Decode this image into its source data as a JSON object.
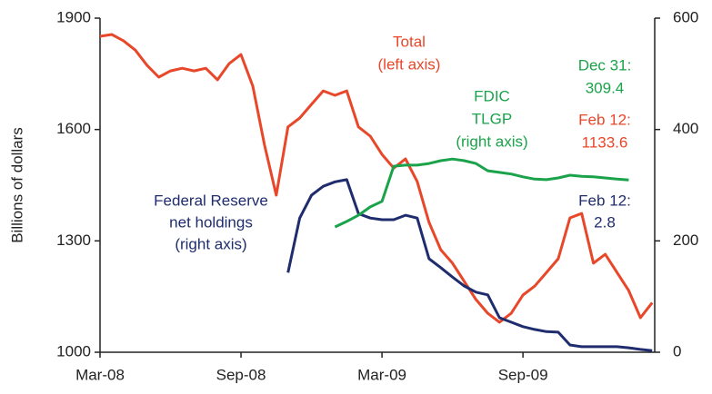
{
  "chart_data": {
    "type": "line",
    "y_label": "Billions of dollars",
    "categories": [
      "Mar-08",
      null,
      null,
      null,
      null,
      null,
      null,
      null,
      null,
      null,
      null,
      null,
      "Sep-08",
      null,
      null,
      null,
      null,
      null,
      null,
      null,
      null,
      null,
      null,
      null,
      "Mar-09",
      null,
      null,
      null,
      null,
      null,
      null,
      null,
      null,
      null,
      null,
      null,
      "Sep-09",
      null,
      null,
      null,
      null,
      null,
      null,
      null,
      null,
      null,
      null,
      null
    ],
    "ylim": [
      1000,
      1900
    ],
    "yticks": [
      1000,
      1300,
      1600,
      1900
    ],
    "y2lim": [
      0,
      600
    ],
    "y2ticks": [
      0,
      200,
      400,
      600
    ],
    "series": [
      {
        "name": "Total",
        "color": "#e8472a",
        "axis": "y",
        "values": [
          1851,
          1856,
          1839,
          1814,
          1773,
          1741,
          1758,
          1765,
          1758,
          1765,
          1734,
          1778,
          1802,
          1717,
          1558,
          1423,
          1607,
          1631,
          1668,
          1704,
          1692,
          1704,
          1607,
          1582,
          1533,
          1496,
          1521,
          1460,
          1350,
          1276,
          1240,
          1191,
          1142,
          1105,
          1081,
          1105,
          1154,
          1178,
          1215,
          1252,
          1362,
          1374,
          1240,
          1264,
          1215,
          1166,
          1093,
          1133.6
        ]
      },
      {
        "name": "Federal Reserve",
        "color": "#1f2d6e",
        "axis": "y2",
        "values": [
          null,
          null,
          null,
          null,
          null,
          null,
          null,
          null,
          null,
          null,
          null,
          null,
          null,
          null,
          null,
          null,
          143,
          241,
          282,
          298,
          306,
          310,
          249,
          241,
          238,
          238,
          246,
          241,
          168,
          152,
          135,
          119,
          108,
          103,
          62,
          54,
          46,
          41,
          37,
          36,
          13,
          10,
          10,
          10,
          10,
          8,
          5,
          2.8
        ]
      },
      {
        "name": "FDIC TLGP",
        "color": "#1aa34a",
        "axis": "y2",
        "values": [
          null,
          null,
          null,
          null,
          null,
          null,
          null,
          null,
          null,
          null,
          null,
          null,
          null,
          null,
          null,
          null,
          null,
          null,
          null,
          null,
          225,
          235,
          246,
          261,
          271,
          334,
          336,
          336,
          339,
          344,
          347,
          344,
          339,
          326,
          323,
          320,
          315,
          311,
          310,
          313,
          318,
          316,
          315,
          313,
          311,
          309.4,
          null,
          null
        ]
      }
    ],
    "annotations": [
      {
        "text": "Total",
        "color": "#e8472a"
      },
      {
        "text": "(left axis)",
        "color": "#e8472a"
      },
      {
        "text": "FDIC",
        "color": "#1aa34a"
      },
      {
        "text": "TLGP",
        "color": "#1aa34a"
      },
      {
        "text": "(right axis)",
        "color": "#1aa34a"
      },
      {
        "text": "Federal Reserve",
        "color": "#1f2d6e"
      },
      {
        "text": "net holdings",
        "color": "#1f2d6e"
      },
      {
        "text": "(right axis)",
        "color": "#1f2d6e"
      },
      {
        "text": "Dec 31:",
        "color": "#1aa34a"
      },
      {
        "text": "309.4",
        "color": "#1aa34a"
      },
      {
        "text": "Feb 12:",
        "color": "#e8472a"
      },
      {
        "text": "1133.6",
        "color": "#e8472a"
      },
      {
        "text": "Feb 12:",
        "color": "#1f2d6e"
      },
      {
        "text": "2.8",
        "color": "#1f2d6e"
      }
    ]
  }
}
